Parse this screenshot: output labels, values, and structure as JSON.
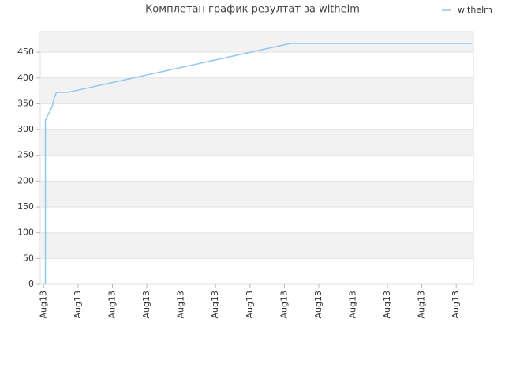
{
  "chart_data": {
    "type": "line",
    "title": "Комплетан график резултат за withelm",
    "x": [
      0.05,
      0.05,
      0.25,
      0.3,
      0.37,
      0.69,
      7.18,
      12.45
    ],
    "series": [
      {
        "name": "withelm",
        "color": "#90c8f0",
        "values": [
          0,
          318,
          345,
          360,
          372,
          372,
          467,
          467
        ]
      }
    ],
    "xlim": [
      -0.1,
      12.5
    ],
    "xticks": [
      {
        "value": 0,
        "label": "Aug13"
      },
      {
        "value": 1,
        "label": "Aug13"
      },
      {
        "value": 2,
        "label": "Aug13"
      },
      {
        "value": 3,
        "label": "Aug13"
      },
      {
        "value": 4,
        "label": "Aug13"
      },
      {
        "value": 5,
        "label": "Aug13"
      },
      {
        "value": 6,
        "label": "Aug13"
      },
      {
        "value": 7,
        "label": "Aug13"
      },
      {
        "value": 8,
        "label": "Aug13"
      },
      {
        "value": 9,
        "label": "Aug13"
      },
      {
        "value": 10,
        "label": "Aug13"
      },
      {
        "value": 11,
        "label": "Aug13"
      },
      {
        "value": 12,
        "label": "Aug13"
      }
    ],
    "ylim": [
      0,
      490
    ],
    "yticks": [
      0,
      50,
      100,
      150,
      200,
      250,
      300,
      350,
      400,
      450
    ],
    "grid": true,
    "legend": "upper right"
  }
}
